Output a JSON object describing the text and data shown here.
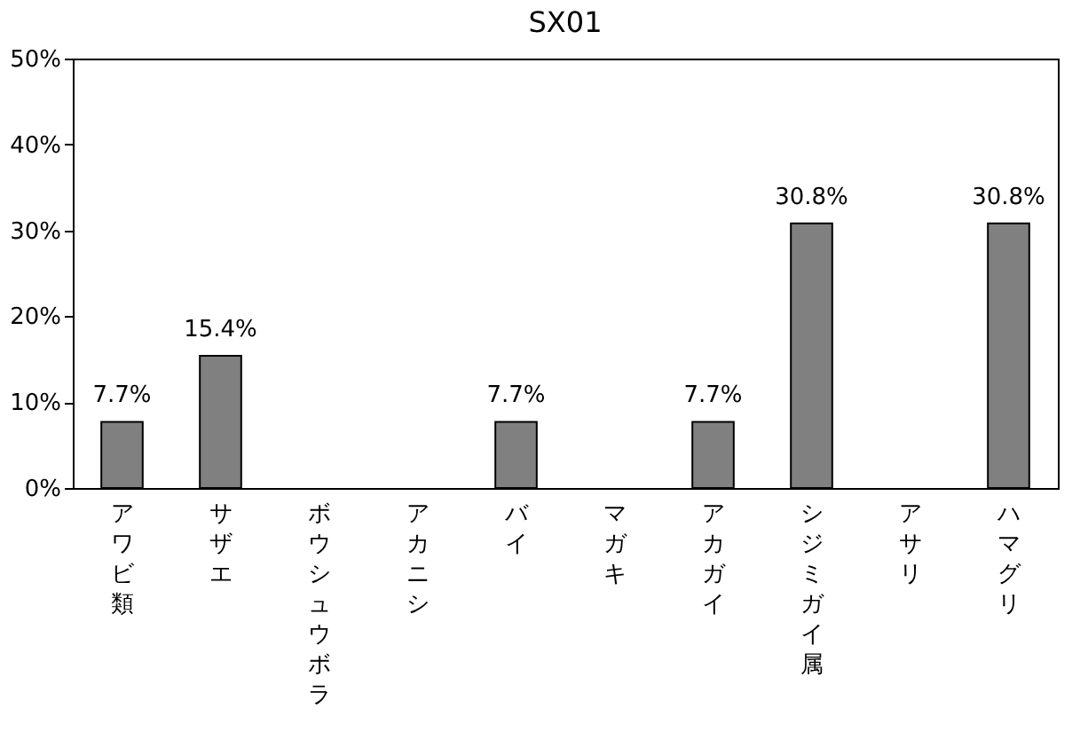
{
  "chart_data": {
    "type": "bar",
    "title": "SX01",
    "categories": [
      "アワビ類",
      "サザエ",
      "ボウシュウボラ",
      "アカニシ",
      "バイ",
      "マガキ",
      "アカガイ",
      "シジミガイ属",
      "アサリ",
      "ハマグリ"
    ],
    "values": [
      7.7,
      15.4,
      0,
      0,
      7.7,
      0,
      7.7,
      30.8,
      0,
      30.8
    ],
    "value_labels": [
      "7.7%",
      "15.4%",
      null,
      null,
      "7.7%",
      null,
      "7.7%",
      "30.8%",
      null,
      "30.8%"
    ],
    "color": "#808080",
    "ylim": [
      0,
      50
    ],
    "yticks": [
      {
        "value": 0,
        "label": "0%"
      },
      {
        "value": 10,
        "label": "10%"
      },
      {
        "value": 20,
        "label": "20%"
      },
      {
        "value": 30,
        "label": "30%"
      },
      {
        "value": 40,
        "label": "40%"
      },
      {
        "value": 50,
        "label": "50%"
      }
    ],
    "grid": false
  }
}
